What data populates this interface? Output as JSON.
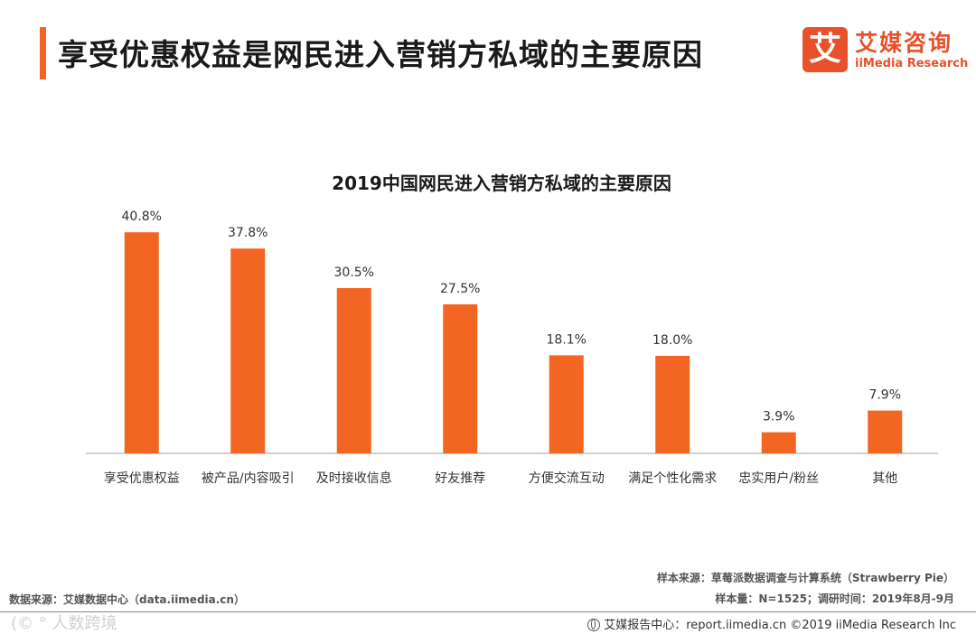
{
  "header": {
    "title": "享受优惠权益是网民进入营销方私域的主要原因",
    "logo_mark": "艾",
    "logo_cn": "艾媒咨询",
    "logo_en": "iiMedia Research"
  },
  "chart_data": {
    "type": "bar",
    "title": "2019中国网民进入营销方私域的主要原因",
    "categories": [
      "享受优惠权益",
      "被产品/内容吸引",
      "及时接收信息",
      "好友推荐",
      "方便交流互动",
      "满足个性化需求",
      "忠实用户/粉丝",
      "其他"
    ],
    "values": [
      40.8,
      37.8,
      30.5,
      27.5,
      18.1,
      18.0,
      3.9,
      7.9
    ],
    "value_labels": [
      "40.8%",
      "37.8%",
      "30.5%",
      "27.5%",
      "18.1%",
      "18.0%",
      "3.9%",
      "7.9%"
    ],
    "unit": "%",
    "xlabel": "",
    "ylabel": "",
    "ylim": [
      0,
      45
    ],
    "grid": false,
    "bar_color": "#f26522"
  },
  "footer": {
    "source": "数据来源：艾媒数据中心（data.iimedia.cn）",
    "sample_source": "样本来源：草莓派数据调查与计算系统（Strawberry Pie）",
    "sample_size": "样本量：N=1525；调研时间：2019年8月-9月",
    "report_center": "艾媒报告中心：report.iimedia.cn ©2019  iiMedia Research  Inc",
    "watermark": "(© ° 人数跨境"
  }
}
